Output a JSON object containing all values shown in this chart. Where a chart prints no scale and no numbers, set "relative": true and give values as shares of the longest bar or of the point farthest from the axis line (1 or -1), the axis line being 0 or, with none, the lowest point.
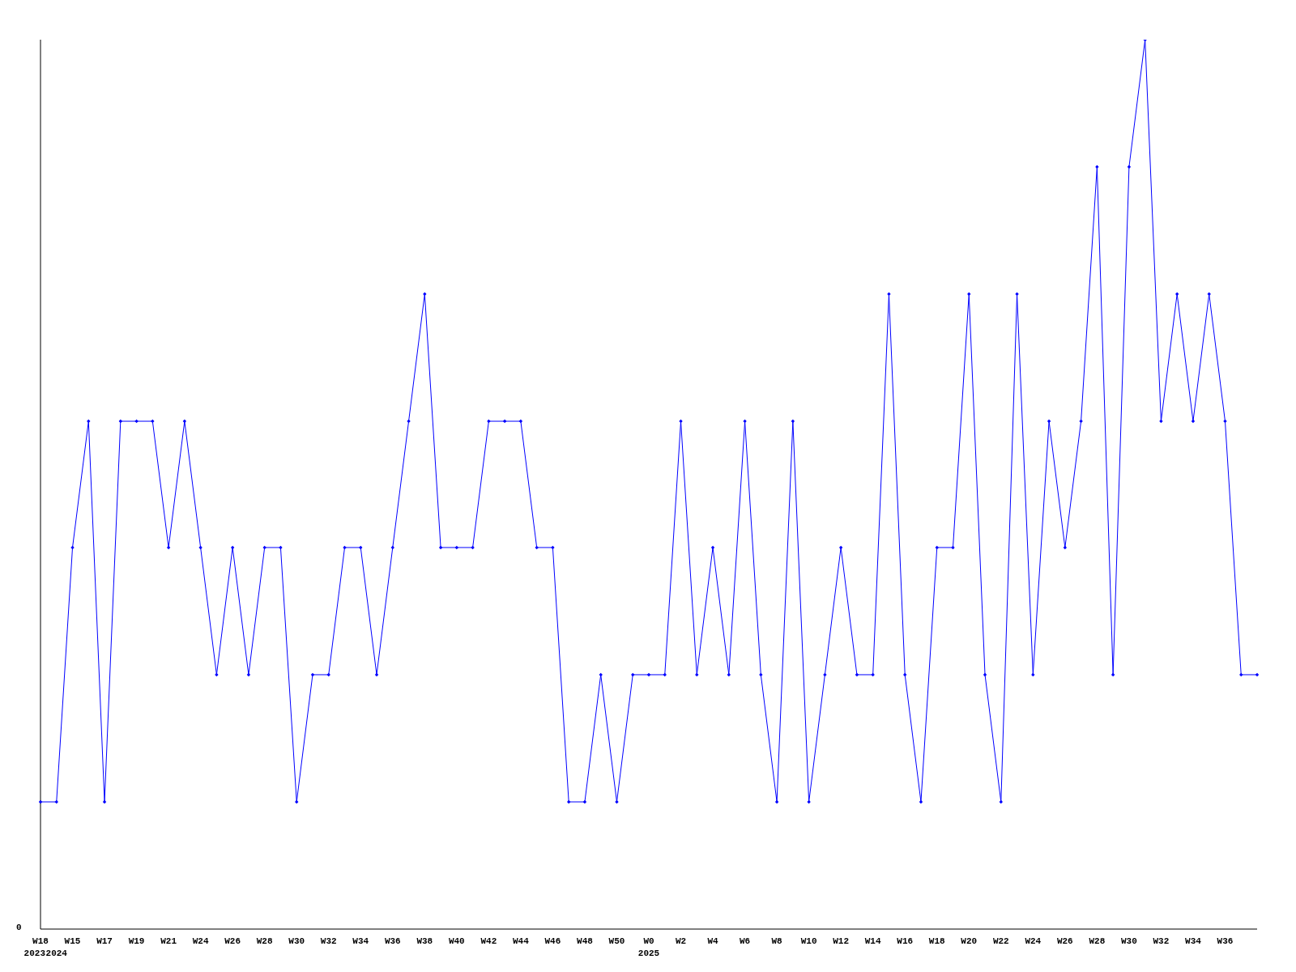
{
  "chart_data": {
    "type": "line",
    "relative": true,
    "marker": "diamond",
    "legend": false,
    "annotations": [
      "0"
    ],
    "categories": [
      "W18\n2023",
      "\n2024",
      "W15",
      null,
      "W17",
      null,
      "W19",
      null,
      "W21",
      null,
      "W24",
      null,
      "W26",
      null,
      "W28",
      null,
      "W30",
      null,
      "W32",
      null,
      "W34",
      null,
      "W36",
      null,
      "W38",
      null,
      "W40",
      null,
      "W42",
      null,
      "W44",
      null,
      "W46",
      null,
      "W48",
      null,
      "W50",
      null,
      "W0\n2025",
      null,
      "W2",
      null,
      "W4",
      null,
      "W6",
      null,
      "W8",
      null,
      "W10",
      null,
      "W12",
      null,
      "W14",
      null,
      "W16",
      null,
      "W18",
      null,
      "W20",
      null,
      "W22",
      null,
      "W24",
      null,
      "W26",
      null,
      "W28",
      null,
      "W30",
      null,
      "W32",
      null,
      "W34",
      null,
      "W36",
      null,
      null
    ],
    "series": [
      {
        "color": "#0000ff",
        "values": [
          0.143,
          0.143,
          0.429,
          0.571,
          0.143,
          0.571,
          0.571,
          0.571,
          0.429,
          0.571,
          0.429,
          0.286,
          0.429,
          0.286,
          0.429,
          0.429,
          0.143,
          0.286,
          0.286,
          0.429,
          0.429,
          0.286,
          0.429,
          0.571,
          0.714,
          0.429,
          0.429,
          0.429,
          0.571,
          0.571,
          0.571,
          0.429,
          0.429,
          0.143,
          0.143,
          0.286,
          0.143,
          0.286,
          0.286,
          0.286,
          0.571,
          0.286,
          0.429,
          0.286,
          0.571,
          0.286,
          0.143,
          0.571,
          0.143,
          0.286,
          0.429,
          0.286,
          0.286,
          0.714,
          0.286,
          0.143,
          0.429,
          0.429,
          0.714,
          0.286,
          0.143,
          0.714,
          0.286,
          0.571,
          0.429,
          0.571,
          0.857,
          0.286,
          0.857,
          1,
          0.571,
          0.714,
          0.571,
          0.714,
          0.571,
          0.286,
          0.286
        ]
      }
    ]
  }
}
